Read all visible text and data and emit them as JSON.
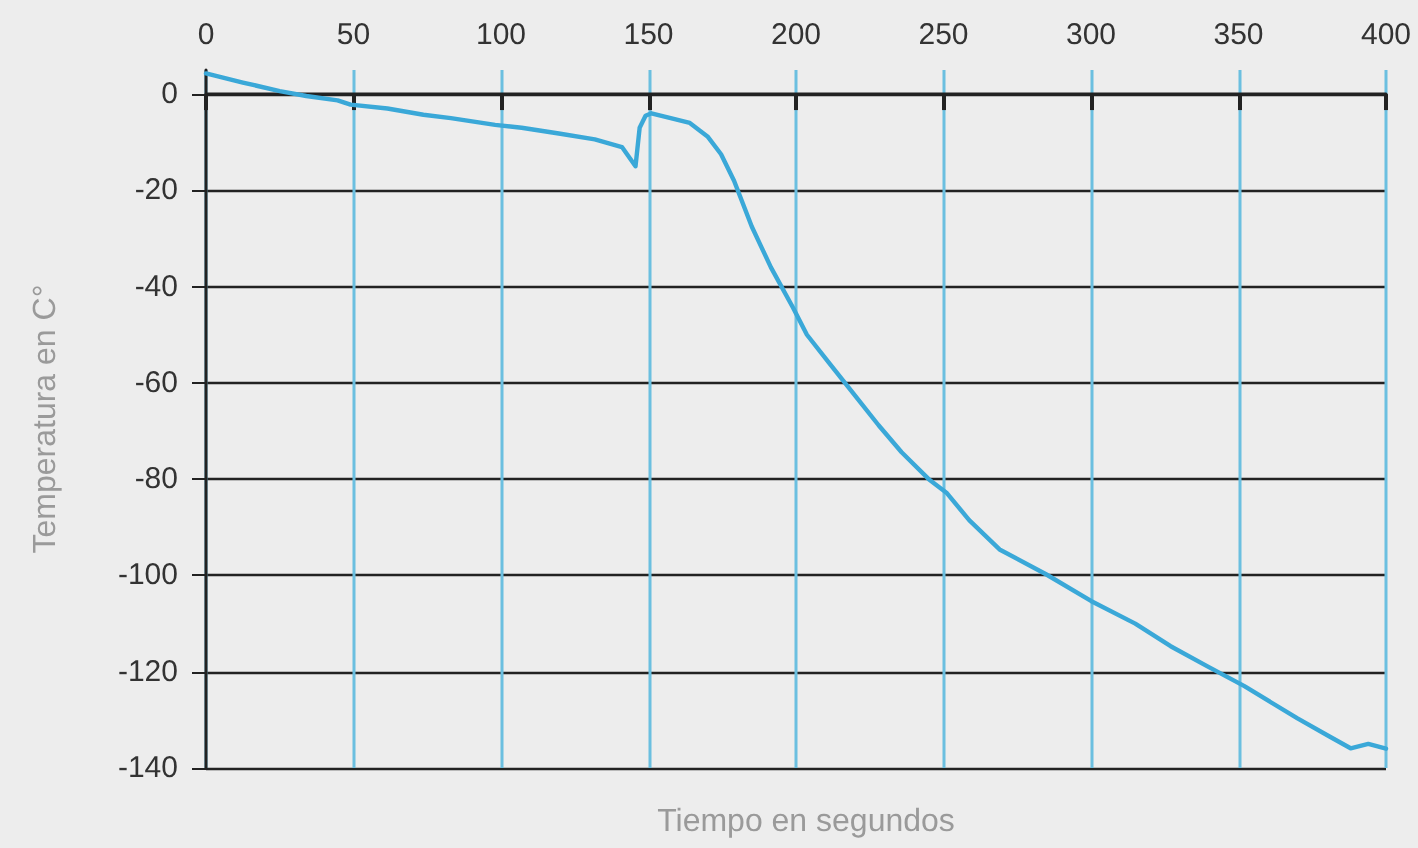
{
  "chart_data": {
    "type": "line",
    "xlabel": "Tiempo en segundos",
    "ylabel": "Temperatura en C°",
    "x": [
      0,
      12.5,
      25,
      34,
      44.6,
      49,
      61.5,
      73.7,
      83,
      98,
      107,
      119.6,
      131.8,
      141,
      145.6,
      147,
      149,
      151,
      164,
      170,
      174.6,
      179,
      185,
      191.5,
      199,
      203.7,
      211,
      220.5,
      228,
      235.8,
      245,
      251,
      258.7,
      269,
      284.6,
      300,
      315,
      327,
      339.8,
      352,
      370,
      380.7,
      388,
      394,
      400
    ],
    "series": [
      {
        "color": "#3aa8d8",
        "values": [
          4.3,
          2.4,
          0.6,
          -0.4,
          -1.3,
          -2.2,
          -3,
          -4.3,
          -5,
          -6.4,
          -7,
          -8.2,
          -9.4,
          -11,
          -15,
          -7,
          -4.5,
          -4,
          -6,
          -8.8,
          -12.5,
          -18,
          -27.5,
          -36,
          -44.4,
          -50,
          -55.7,
          -63,
          -68.8,
          -74.4,
          -80,
          -82.8,
          -88.5,
          -94.6,
          -99.7,
          -105.3,
          -110,
          -114.7,
          -119,
          -123,
          -129.7,
          -133.4,
          -135.9,
          -135,
          -136
        ]
      }
    ],
    "xlim": [
      0,
      400
    ],
    "xticks": [
      0,
      50,
      100,
      150,
      200,
      250,
      300,
      350,
      400
    ],
    "ylim": [
      -140,
      5
    ],
    "yticks": [
      -140,
      -120,
      -100,
      -80,
      -60,
      -40,
      -20,
      0
    ],
    "grid": true,
    "marker": "none",
    "line_style": "solid"
  }
}
